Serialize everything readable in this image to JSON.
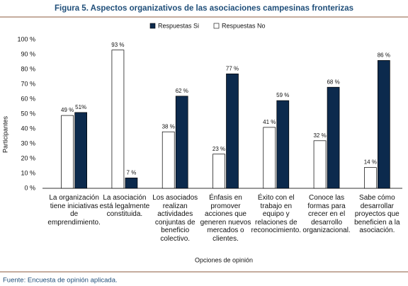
{
  "chart_data": {
    "type": "bar",
    "title": "Figura 5. Aspectos organizativos de las asociaciones campesinas fronterizas",
    "ylabel": "Participantes",
    "xlabel": "Opciones de opinión",
    "source": "Fuente: Encuesta de opinión aplicada.",
    "categories": [
      "La organización tiene iniciativas de emprendimiento.",
      "La asociación está legalmente constituida.",
      "Los asociados realizan actividades conjuntas de beneficio colectivo.",
      "Énfasis en promover acciones que generen nuevos mercados o clientes.",
      "Éxito con el trabajo en equipo y relaciones de reconocimiento.",
      "Conoce las formas para crecer en el desarrollo organizacional.",
      "Sabe cómo desarrollar proyectos que beneficien a la asociación."
    ],
    "series": [
      {
        "name": "Respuestas Si",
        "color": "#0c2a4d",
        "values": [
          51,
          7,
          62,
          77,
          59,
          68,
          86
        ],
        "value_labels": [
          "51%",
          "7 %",
          "62 %",
          "77 %",
          "59 %",
          "68 %",
          "86 %"
        ]
      },
      {
        "name": "Respuestas No",
        "color": "#ffffff",
        "values": [
          49,
          93,
          38,
          23,
          41,
          32,
          14
        ],
        "value_labels": [
          "49 %",
          "93 %",
          "38 %",
          "23 %",
          "41 %",
          "32 %",
          "14 %"
        ]
      }
    ],
    "ylim": [
      0,
      100
    ],
    "yticks": [
      {
        "value": 0,
        "label": "0 %"
      },
      {
        "value": 10,
        "label": "10 %"
      },
      {
        "value": 20,
        "label": "20 %"
      },
      {
        "value": 30,
        "label": "30 %"
      },
      {
        "value": 40,
        "label": "40 %"
      },
      {
        "value": 50,
        "label": "50 %"
      },
      {
        "value": 60,
        "label": "60 %"
      },
      {
        "value": 70,
        "label": "70 %"
      },
      {
        "value": 80,
        "label": "80 %"
      },
      {
        "value": 90,
        "label": "90 %"
      },
      {
        "value": 100,
        "label": "100 %"
      }
    ],
    "grid": false,
    "legend": "top"
  }
}
